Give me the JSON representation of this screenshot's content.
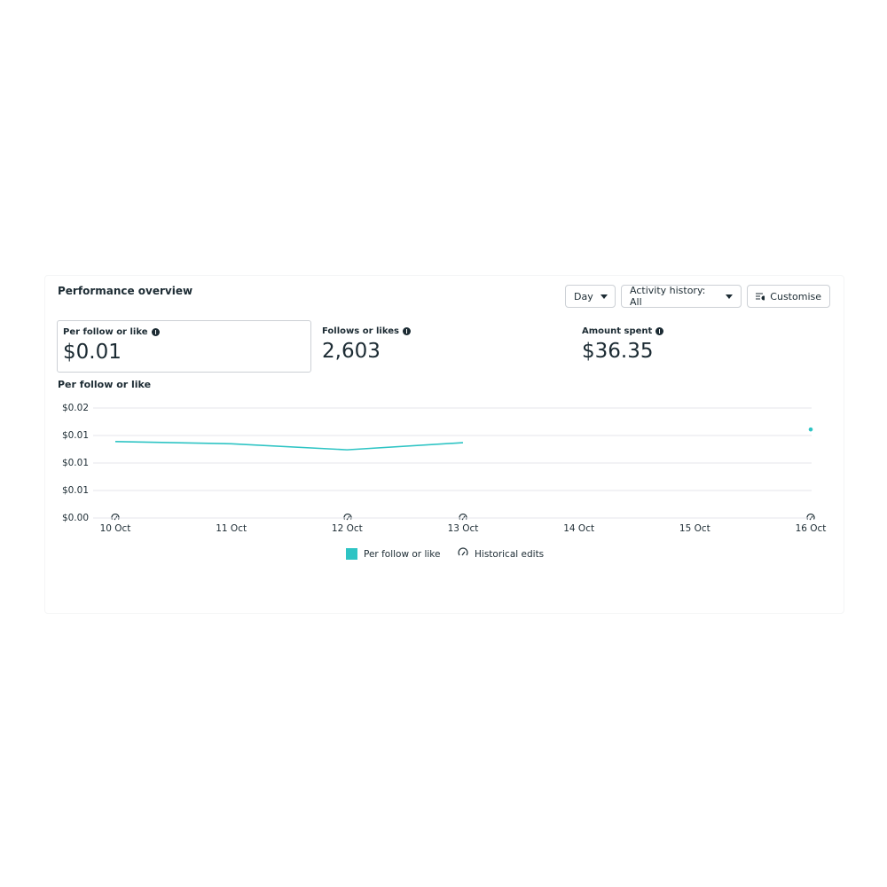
{
  "header": {
    "title": "Performance overview"
  },
  "controls": {
    "day": "Day",
    "activity_history": "Activity history: All",
    "customise": "Customise"
  },
  "metrics": [
    {
      "label": "Per follow or like",
      "value": "$0.01"
    },
    {
      "label": "Follows or likes",
      "value": "2,603"
    },
    {
      "label": "Amount spent",
      "value": "$36.35"
    }
  ],
  "chart_data": {
    "type": "line",
    "title": "Per follow or like",
    "categories": [
      "10 Oct",
      "11 Oct",
      "12 Oct",
      "13 Oct",
      "14 Oct",
      "15 Oct",
      "16 Oct"
    ],
    "series": [
      {
        "name": "Per follow or like",
        "color": "#2ec4c4",
        "values": [
          0.0139,
          0.0135,
          0.0124,
          0.0137,
          null,
          null,
          0.0161
        ]
      }
    ],
    "ylim": [
      0,
      0.02
    ],
    "yticks": [
      {
        "value": 0,
        "label": "$0.00"
      },
      {
        "value": 0.005,
        "label": "$0.01"
      },
      {
        "value": 0.01,
        "label": "$0.01"
      },
      {
        "value": 0.015,
        "label": "$0.01"
      },
      {
        "value": 0.02,
        "label": "$0.02"
      }
    ],
    "grid": true,
    "edits_legend": "Historical edits"
  }
}
